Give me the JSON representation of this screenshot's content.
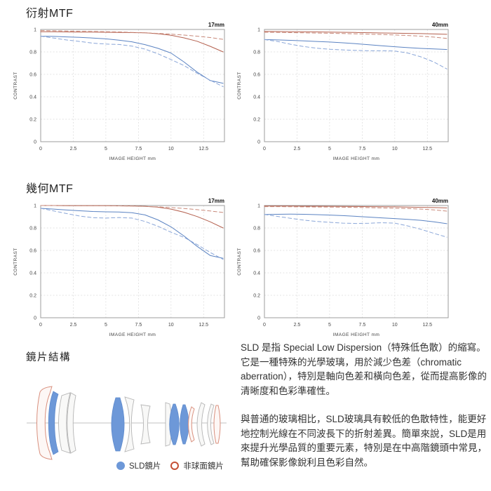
{
  "sections": {
    "diffraction_mtf_title": "衍射MTF",
    "geometric_mtf_title": "幾何MTF"
  },
  "lens_section": {
    "title": "鏡片結構",
    "legend_sld_label": "SLD鏡片",
    "legend_aspherical_label": "非球面鏡片"
  },
  "description": {
    "paragraph1": "SLD 是指 Special Low Dispersion（特殊低色散）的縮寫。它是一種特殊的光學玻璃，用於減少色差（chromatic aberration），特別是軸向色差和橫向色差，從而提高影像的清晰度和色彩準確性。",
    "paragraph2": "與普通的玻璃相比，SLD玻璃具有較低的色散特性，能更好地控制光線在不同波長下的折射差異。簡單來說，SLD是用來提升光學品質的重要元素，特別是在中高階鏡頭中常見，幫助確保影像銳利且色彩自然。"
  },
  "colors": {
    "red_solid": "#b4604e",
    "red_dashed": "#c8897a",
    "blue_solid": "#5b83c2",
    "blue_dashed": "#8aa6d8",
    "sld_blue": "#6d98d8",
    "aspherical_red": "#c44f35",
    "aspherical_outline": "#d9907e",
    "lens_gray": "#b5b5b5"
  },
  "chart_data": [
    {
      "type": "line",
      "group": "衍射MTF",
      "title": "17mm",
      "xlabel": "IMAGE HEIGHT mm",
      "ylabel": "CONTRAST",
      "xlim": [
        0,
        14.1
      ],
      "ylim": [
        0,
        1
      ],
      "xticks": [
        0,
        2.5,
        5,
        7.5,
        10,
        12.5
      ],
      "yticks": [
        0,
        0.2,
        0.4,
        0.6,
        0.8,
        1
      ],
      "grid": true,
      "legend_position": "none",
      "series": [
        {
          "name": "red-solid",
          "color": "#b4604e",
          "dash": false,
          "x": [
            0,
            1,
            2,
            3,
            4,
            5,
            6,
            7,
            8,
            9,
            10,
            11,
            12,
            13,
            14
          ],
          "y": [
            0.98,
            0.98,
            0.978,
            0.977,
            0.976,
            0.975,
            0.974,
            0.972,
            0.97,
            0.962,
            0.948,
            0.925,
            0.895,
            0.85,
            0.8
          ]
        },
        {
          "name": "red-dashed",
          "color": "#c8897a",
          "dash": true,
          "x": [
            0,
            1,
            2,
            3,
            4,
            5,
            6,
            7,
            8,
            9,
            10,
            11,
            12,
            13,
            14
          ],
          "y": [
            0.99,
            0.988,
            0.986,
            0.984,
            0.982,
            0.98,
            0.978,
            0.974,
            0.97,
            0.965,
            0.958,
            0.95,
            0.94,
            0.928,
            0.912
          ]
        },
        {
          "name": "blue-solid",
          "color": "#5b83c2",
          "dash": false,
          "x": [
            0,
            1,
            2,
            3,
            4,
            5,
            6,
            7,
            8,
            9,
            10,
            11,
            12,
            13,
            14
          ],
          "y": [
            0.94,
            0.938,
            0.934,
            0.93,
            0.924,
            0.916,
            0.905,
            0.89,
            0.865,
            0.832,
            0.79,
            0.71,
            0.62,
            0.545,
            0.52
          ]
        },
        {
          "name": "blue-dashed",
          "color": "#8aa6d8",
          "dash": true,
          "x": [
            0,
            1,
            2,
            3,
            4,
            5,
            6,
            7,
            8,
            9,
            10,
            11,
            12,
            13,
            14
          ],
          "y": [
            0.94,
            0.924,
            0.906,
            0.893,
            0.878,
            0.87,
            0.866,
            0.852,
            0.825,
            0.783,
            0.732,
            0.678,
            0.61,
            0.548,
            0.49
          ]
        }
      ]
    },
    {
      "type": "line",
      "group": "衍射MTF",
      "title": "40mm",
      "xlabel": "IMAGE HEIGHT mm",
      "ylabel": "CONTRAST",
      "xlim": [
        0,
        14.1
      ],
      "ylim": [
        0,
        1
      ],
      "xticks": [
        0,
        2.5,
        5,
        7.5,
        10,
        12.5
      ],
      "yticks": [
        0,
        0.2,
        0.4,
        0.6,
        0.8,
        1
      ],
      "grid": true,
      "legend_position": "none",
      "series": [
        {
          "name": "red-solid",
          "color": "#b4604e",
          "dash": false,
          "x": [
            0,
            1,
            2,
            3,
            4,
            5,
            6,
            7,
            8,
            9,
            10,
            11,
            12,
            13,
            14
          ],
          "y": [
            0.982,
            0.981,
            0.98,
            0.979,
            0.978,
            0.977,
            0.975,
            0.973,
            0.971,
            0.969,
            0.967,
            0.965,
            0.963,
            0.96,
            0.957
          ]
        },
        {
          "name": "red-dashed",
          "color": "#c8897a",
          "dash": true,
          "x": [
            0,
            1,
            2,
            3,
            4,
            5,
            6,
            7,
            8,
            9,
            10,
            11,
            12,
            13,
            14
          ],
          "y": [
            0.975,
            0.974,
            0.972,
            0.97,
            0.968,
            0.966,
            0.964,
            0.961,
            0.958,
            0.955,
            0.951,
            0.946,
            0.94,
            0.932,
            0.92
          ]
        },
        {
          "name": "blue-solid",
          "color": "#5b83c2",
          "dash": false,
          "x": [
            0,
            1,
            2,
            3,
            4,
            5,
            6,
            7,
            8,
            9,
            10,
            11,
            12,
            13,
            14
          ],
          "y": [
            0.91,
            0.907,
            0.903,
            0.898,
            0.893,
            0.888,
            0.881,
            0.873,
            0.864,
            0.855,
            0.846,
            0.838,
            0.831,
            0.826,
            0.821
          ]
        },
        {
          "name": "blue-dashed",
          "color": "#8aa6d8",
          "dash": true,
          "x": [
            0,
            1,
            2,
            3,
            4,
            5,
            6,
            7,
            8,
            9,
            10,
            11,
            12,
            13,
            14
          ],
          "y": [
            0.91,
            0.893,
            0.868,
            0.848,
            0.833,
            0.824,
            0.818,
            0.813,
            0.81,
            0.81,
            0.808,
            0.79,
            0.756,
            0.71,
            0.648
          ]
        }
      ]
    },
    {
      "type": "line",
      "group": "幾何MTF",
      "title": "17mm",
      "xlabel": "IMAGE HEIGHT mm",
      "ylabel": "CONTRAST",
      "xlim": [
        0,
        14.1
      ],
      "ylim": [
        0,
        1
      ],
      "xticks": [
        0,
        2.5,
        5,
        7.5,
        10,
        12.5
      ],
      "yticks": [
        0,
        0.2,
        0.4,
        0.6,
        0.8,
        1
      ],
      "grid": true,
      "legend_position": "none",
      "series": [
        {
          "name": "red-solid",
          "color": "#b4604e",
          "dash": false,
          "x": [
            0,
            1,
            2,
            3,
            4,
            5,
            6,
            7,
            8,
            9,
            10,
            11,
            12,
            13,
            14
          ],
          "y": [
            1.0,
            1.0,
            0.999,
            0.999,
            0.998,
            0.998,
            0.997,
            0.996,
            0.993,
            0.985,
            0.968,
            0.94,
            0.902,
            0.855,
            0.8
          ]
        },
        {
          "name": "red-dashed",
          "color": "#c8897a",
          "dash": true,
          "x": [
            0,
            1,
            2,
            3,
            4,
            5,
            6,
            7,
            8,
            9,
            10,
            11,
            12,
            13,
            14
          ],
          "y": [
            1.0,
            1.0,
            0.999,
            0.999,
            0.998,
            0.998,
            0.997,
            0.995,
            0.992,
            0.988,
            0.982,
            0.974,
            0.963,
            0.951,
            0.938
          ]
        },
        {
          "name": "blue-solid",
          "color": "#5b83c2",
          "dash": false,
          "x": [
            0,
            1,
            2,
            3,
            4,
            5,
            6,
            7,
            8,
            9,
            10,
            11,
            12,
            13,
            14
          ],
          "y": [
            0.975,
            0.968,
            0.96,
            0.953,
            0.947,
            0.944,
            0.942,
            0.936,
            0.916,
            0.872,
            0.81,
            0.728,
            0.636,
            0.555,
            0.53
          ]
        },
        {
          "name": "blue-dashed",
          "color": "#8aa6d8",
          "dash": true,
          "x": [
            0,
            1,
            2,
            3,
            4,
            5,
            6,
            7,
            8,
            9,
            10,
            11,
            12,
            13,
            14
          ],
          "y": [
            0.975,
            0.952,
            0.928,
            0.906,
            0.892,
            0.888,
            0.893,
            0.888,
            0.858,
            0.815,
            0.762,
            0.716,
            0.652,
            0.582,
            0.52
          ]
        }
      ]
    },
    {
      "type": "line",
      "group": "幾何MTF",
      "title": "40mm",
      "xlabel": "IMAGE HEIGHT mm",
      "ylabel": "CONTRAST",
      "xlim": [
        0,
        14.1
      ],
      "ylim": [
        0,
        1
      ],
      "xticks": [
        0,
        2.5,
        5,
        7.5,
        10,
        12.5
      ],
      "yticks": [
        0,
        0.2,
        0.4,
        0.6,
        0.8,
        1
      ],
      "grid": true,
      "legend_position": "none",
      "series": [
        {
          "name": "red-solid",
          "color": "#b4604e",
          "dash": false,
          "x": [
            0,
            1,
            2,
            3,
            4,
            5,
            6,
            7,
            8,
            9,
            10,
            11,
            12,
            13,
            14
          ],
          "y": [
            0.995,
            0.995,
            0.995,
            0.994,
            0.994,
            0.993,
            0.992,
            0.991,
            0.99,
            0.989,
            0.988,
            0.986,
            0.984,
            0.982,
            0.979
          ]
        },
        {
          "name": "red-dashed",
          "color": "#c8897a",
          "dash": true,
          "x": [
            0,
            1,
            2,
            3,
            4,
            5,
            6,
            7,
            8,
            9,
            10,
            11,
            12,
            13,
            14
          ],
          "y": [
            0.99,
            0.99,
            0.989,
            0.988,
            0.987,
            0.986,
            0.985,
            0.983,
            0.981,
            0.979,
            0.976,
            0.973,
            0.968,
            0.961,
            0.95
          ]
        },
        {
          "name": "blue-solid",
          "color": "#5b83c2",
          "dash": false,
          "x": [
            0,
            1,
            2,
            3,
            4,
            5,
            6,
            7,
            8,
            9,
            10,
            11,
            12,
            13,
            14
          ],
          "y": [
            0.92,
            0.922,
            0.923,
            0.922,
            0.919,
            0.915,
            0.91,
            0.904,
            0.897,
            0.89,
            0.884,
            0.877,
            0.868,
            0.855,
            0.838
          ]
        },
        {
          "name": "blue-dashed",
          "color": "#8aa6d8",
          "dash": true,
          "x": [
            0,
            1,
            2,
            3,
            4,
            5,
            6,
            7,
            8,
            9,
            10,
            11,
            12,
            13,
            14
          ],
          "y": [
            0.92,
            0.903,
            0.886,
            0.87,
            0.858,
            0.85,
            0.843,
            0.84,
            0.842,
            0.847,
            0.843,
            0.818,
            0.788,
            0.752,
            0.718
          ]
        }
      ]
    }
  ]
}
